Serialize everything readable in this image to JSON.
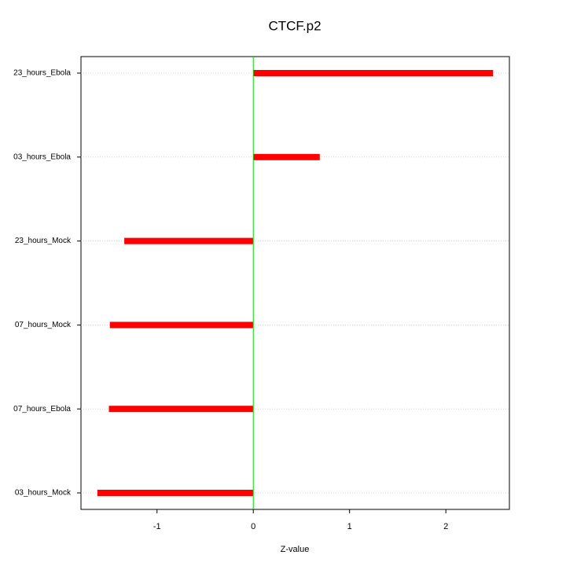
{
  "chart_data": {
    "type": "bar",
    "orientation": "horizontal",
    "title": "CTCF.p2",
    "x_label": "Z-value",
    "categories": [
      "23_hours_Ebola",
      "03_hours_Ebola",
      "23_hours_Mock",
      "07_hours_Mock",
      "07_hours_Ebola",
      "03_hours_Mock"
    ],
    "values": [
      2.49,
      0.69,
      -1.34,
      -1.49,
      -1.5,
      -1.62
    ],
    "color": "#ff0000",
    "zero_line_color": "#00dd00",
    "xlim": [
      -1.79,
      2.66
    ],
    "xticks": [
      -1,
      0,
      1,
      2
    ],
    "grid": true
  }
}
